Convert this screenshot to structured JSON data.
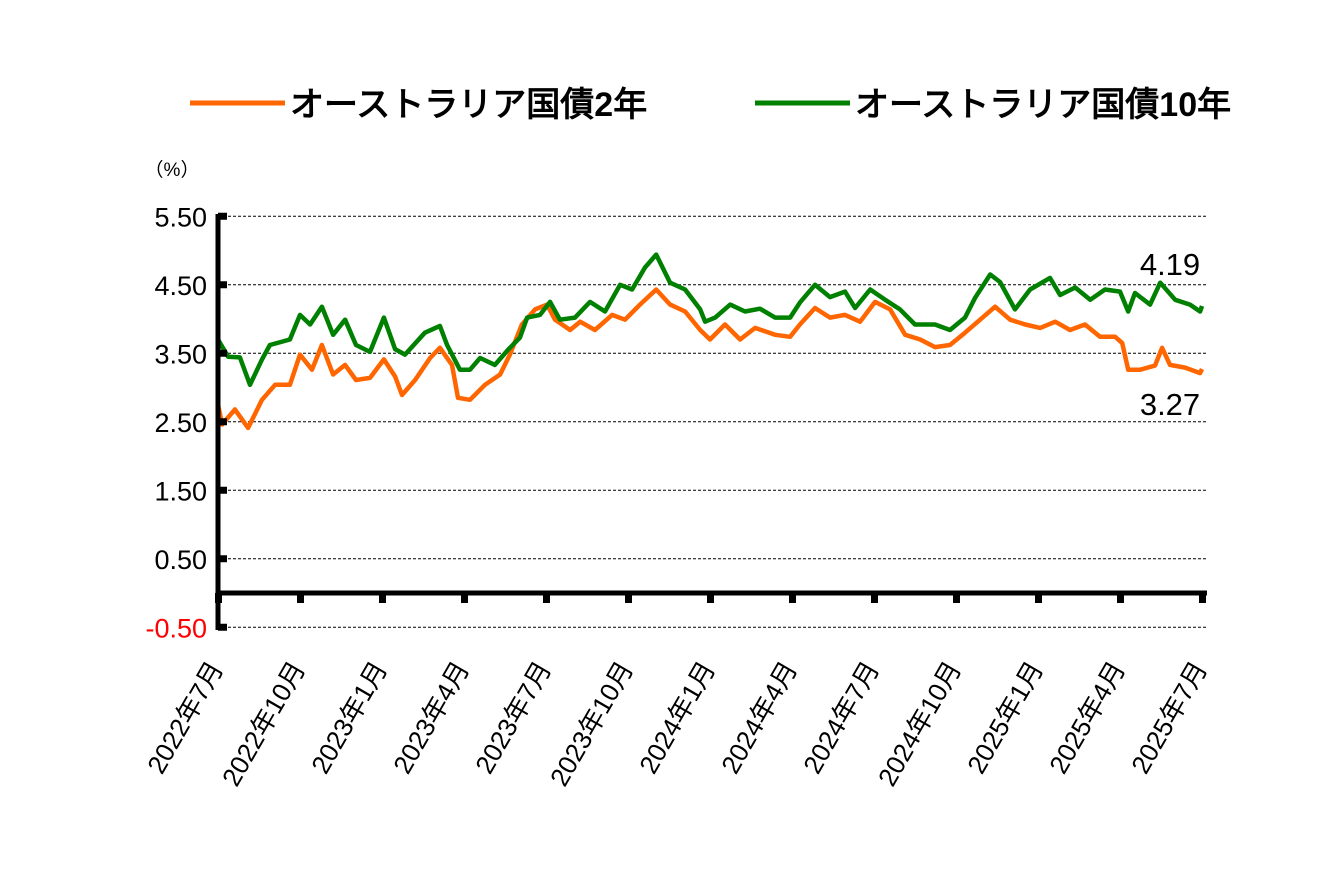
{
  "chart_data": {
    "type": "line",
    "title": "",
    "ylabel": "（%）",
    "xlabel": "",
    "ylim": [
      -0.5,
      5.5
    ],
    "yticks": [
      {
        "value": 5.5,
        "label": "5.50",
        "color": "#000000"
      },
      {
        "value": 4.5,
        "label": "4.50",
        "color": "#000000"
      },
      {
        "value": 3.5,
        "label": "3.50",
        "color": "#000000"
      },
      {
        "value": 2.5,
        "label": "2.50",
        "color": "#000000"
      },
      {
        "value": 1.5,
        "label": "1.50",
        "color": "#000000"
      },
      {
        "value": 0.5,
        "label": "0.50",
        "color": "#000000"
      },
      {
        "value": -0.5,
        "label": "-0.50",
        "color": "#ff0000"
      }
    ],
    "xlim_months_from_start": [
      0,
      36
    ],
    "xticks": [
      {
        "month": 0,
        "label": "2022年7月"
      },
      {
        "month": 3,
        "label": "2022年10月"
      },
      {
        "month": 6,
        "label": "2023年1月"
      },
      {
        "month": 9,
        "label": "2023年4月"
      },
      {
        "month": 12,
        "label": "2023年7月"
      },
      {
        "month": 15,
        "label": "2023年10月"
      },
      {
        "month": 18,
        "label": "2024年1月"
      },
      {
        "month": 21,
        "label": "2024年4月"
      },
      {
        "month": 24,
        "label": "2024年7月"
      },
      {
        "month": 27,
        "label": "2024年10月"
      },
      {
        "month": 30,
        "label": "2025年1月"
      },
      {
        "month": 33,
        "label": "2025年4月"
      },
      {
        "month": 36,
        "label": "2025年7月"
      }
    ],
    "grid": "horizontal-dashed",
    "legend_position": "top",
    "series": [
      {
        "name": "オーストラリア国債2年",
        "color": "#ff6600",
        "last_value_label": "3.27",
        "x": [
          0,
          0.15,
          0.62,
          1.1,
          1.61,
          2.09,
          2.63,
          3.0,
          3.44,
          3.8,
          4.21,
          4.65,
          5.05,
          5.56,
          6.07,
          6.48,
          6.73,
          7.21,
          7.76,
          8.12,
          8.56,
          8.78,
          9.22,
          9.77,
          10.32,
          10.68,
          11.12,
          11.6,
          12.04,
          12.33,
          12.88,
          13.25,
          13.79,
          14.42,
          14.89,
          15.44,
          16.03,
          16.54,
          17.09,
          17.64,
          18.0,
          18.55,
          19.1,
          19.65,
          20.38,
          20.93,
          21.29,
          21.84,
          22.39,
          22.94,
          23.49,
          24.04,
          24.59,
          25.14,
          25.69,
          26.23,
          26.78,
          27.33,
          27.88,
          28.43,
          28.98,
          29.53,
          30.08,
          30.63,
          31.17,
          31.72,
          32.27,
          32.82,
          33.08,
          33.3,
          33.74,
          34.28,
          34.54,
          34.83,
          35.38,
          35.93,
          36
        ],
        "y": [
          2.75,
          2.46,
          2.68,
          2.41,
          2.82,
          3.04,
          3.04,
          3.48,
          3.26,
          3.62,
          3.19,
          3.33,
          3.11,
          3.14,
          3.41,
          3.16,
          2.89,
          3.11,
          3.43,
          3.58,
          3.33,
          2.85,
          2.82,
          3.04,
          3.19,
          3.48,
          3.92,
          4.14,
          4.21,
          3.99,
          3.84,
          3.96,
          3.84,
          4.06,
          3.99,
          4.21,
          4.43,
          4.21,
          4.11,
          3.84,
          3.7,
          3.92,
          3.7,
          3.87,
          3.77,
          3.74,
          3.92,
          4.16,
          4.02,
          4.06,
          3.96,
          4.25,
          4.14,
          3.77,
          3.7,
          3.59,
          3.62,
          3.8,
          3.99,
          4.18,
          3.99,
          3.92,
          3.87,
          3.96,
          3.84,
          3.92,
          3.74,
          3.74,
          3.65,
          3.26,
          3.26,
          3.32,
          3.58,
          3.33,
          3.29,
          3.21,
          3.27
        ]
      },
      {
        "name": "オーストラリア国債10年",
        "color": "#008000",
        "last_value_label": "4.19",
        "x": [
          0,
          0.37,
          0.8,
          1.17,
          1.61,
          1.9,
          2.63,
          3.0,
          3.37,
          3.8,
          4.21,
          4.65,
          5.05,
          5.56,
          6.07,
          6.48,
          6.84,
          7.57,
          8.12,
          8.38,
          8.85,
          9.22,
          9.59,
          10.13,
          10.61,
          11.05,
          11.31,
          11.78,
          12.15,
          12.51,
          13.06,
          13.61,
          14.16,
          14.71,
          15.15,
          15.62,
          16.03,
          16.54,
          17.09,
          17.64,
          17.82,
          18.19,
          18.74,
          19.28,
          19.83,
          20.38,
          20.93,
          21.29,
          21.84,
          22.39,
          22.94,
          23.31,
          23.86,
          24.41,
          24.95,
          25.5,
          26.23,
          26.78,
          27.33,
          27.7,
          28.25,
          28.61,
          29.16,
          29.71,
          30.44,
          30.81,
          31.36,
          31.91,
          32.45,
          33.0,
          33.3,
          33.55,
          34.1,
          34.47,
          35.02,
          35.56,
          35.93,
          36
        ],
        "y": [
          3.7,
          3.45,
          3.44,
          3.04,
          3.41,
          3.62,
          3.7,
          4.06,
          3.92,
          4.18,
          3.77,
          3.99,
          3.62,
          3.52,
          4.02,
          3.56,
          3.48,
          3.8,
          3.9,
          3.62,
          3.26,
          3.26,
          3.43,
          3.33,
          3.55,
          3.73,
          4.02,
          4.06,
          4.25,
          3.99,
          4.02,
          4.25,
          4.11,
          4.5,
          4.43,
          4.75,
          4.94,
          4.53,
          4.43,
          4.14,
          3.96,
          4.02,
          4.21,
          4.11,
          4.15,
          4.02,
          4.02,
          4.24,
          4.5,
          4.32,
          4.4,
          4.16,
          4.43,
          4.28,
          4.14,
          3.92,
          3.92,
          3.84,
          4.02,
          4.31,
          4.65,
          4.54,
          4.14,
          4.43,
          4.6,
          4.35,
          4.46,
          4.28,
          4.43,
          4.4,
          4.11,
          4.38,
          4.21,
          4.53,
          4.28,
          4.21,
          4.11,
          4.19
        ]
      }
    ]
  }
}
